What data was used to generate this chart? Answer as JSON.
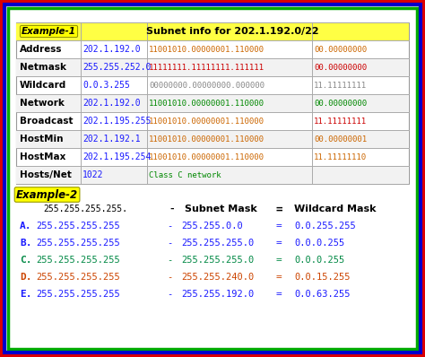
{
  "title1": "Example-1",
  "subtitle1": "Subnet info for 202.1.192.0/22",
  "table1_rows": [
    [
      "Address",
      "202.1.192.0",
      "11001010.00000001.110000",
      "00.00000000"
    ],
    [
      "Netmask",
      "255.255.252.0",
      "11111111.11111111.111111",
      "00.00000000"
    ],
    [
      "Wildcard",
      "0.0.3.255",
      "00000000.00000000.000000",
      "11.11111111"
    ],
    [
      "Network",
      "202.1.192.0",
      "11001010.00000001.110000",
      "00.00000000"
    ],
    [
      "Broadcast",
      "202.1.195.255",
      "11001010.00000001.110000",
      "11.11111111"
    ],
    [
      "HostMin",
      "202.1.192.1",
      "11001010.00000001.110000",
      "00.00000001"
    ],
    [
      "HostMax",
      "202.1.195.254",
      "11001010.00000001.110000",
      "11.11111110"
    ],
    [
      "Hosts/Net",
      "1022",
      "Class C network",
      ""
    ]
  ],
  "col0_colors": [
    "black",
    "black",
    "black",
    "black",
    "black",
    "black",
    "black",
    "black"
  ],
  "col1_colors": [
    "#1a1aff",
    "#1a1aff",
    "#1a1aff",
    "#1a1aff",
    "#1a1aff",
    "#1a1aff",
    "#1a1aff",
    "#1a1aff"
  ],
  "col2_colors": [
    "#cc6600",
    "#cc0000",
    "#888888",
    "#008800",
    "#cc6600",
    "#cc6600",
    "#cc6600",
    "#008800"
  ],
  "col3_colors": [
    "#cc6600",
    "#cc0000",
    "#888888",
    "#008800",
    "#cc0000",
    "#cc6600",
    "#cc6600",
    ""
  ],
  "title2": "Example-2",
  "header2_col0": "255.255.255.255.",
  "header2_col1": "-",
  "header2_col2": "Subnet Mask",
  "header2_col3": "=",
  "header2_col4": "Wildcard Mask",
  "rows2": [
    [
      "A.",
      "255.255.255.255",
      "-",
      "255.255.0.0",
      "=",
      "0.0.255.255"
    ],
    [
      "B.",
      "255.255.255.255",
      "-",
      "255.255.255.0",
      "=",
      "0.0.0.255"
    ],
    [
      "C.",
      "255.255.255.255",
      "-",
      "255.255.255.0",
      "=",
      "0.0.0.255"
    ],
    [
      "D.",
      "255.255.255.255",
      "-",
      "255.255.240.0",
      "=",
      "0.0.15.255"
    ],
    [
      "E.",
      "255.255.255.255",
      "-",
      "255.255.192.0",
      "=",
      "0.0.63.255"
    ]
  ],
  "row2_colors": [
    "#1a1aff",
    "#1a1aff",
    "#008844",
    "#cc4400",
    "#1a1aff"
  ],
  "bg_color": "#e8e8e8",
  "inner_bg": "#ffffff"
}
